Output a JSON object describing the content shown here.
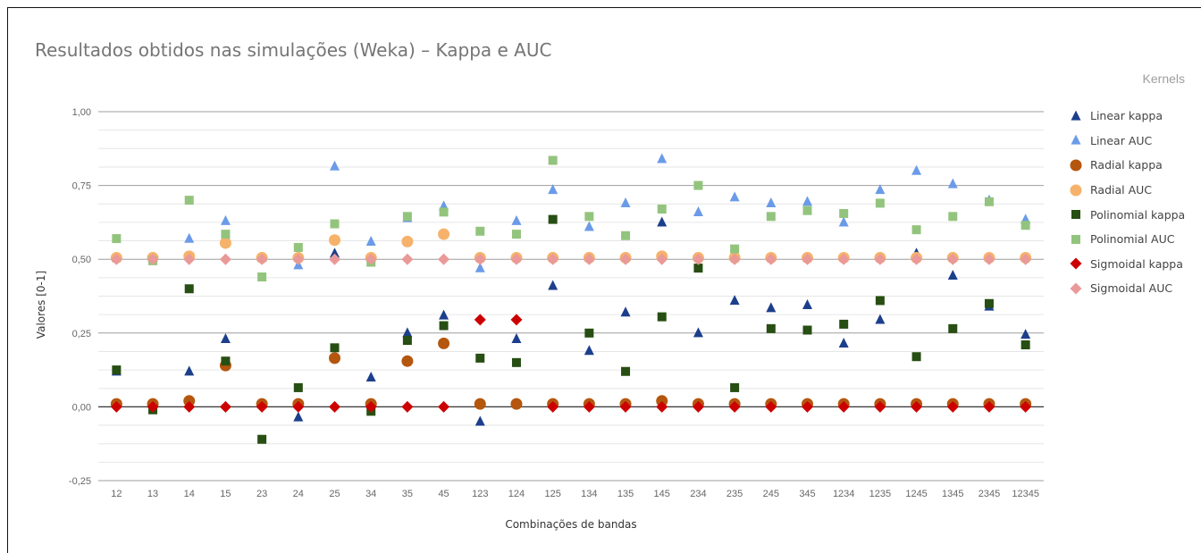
{
  "chart_data": {
    "type": "scatter",
    "title": "Resultados obtidos nas simulações (Weka) – Kappa e AUC",
    "xlabel": "Combinações de bandas",
    "ylabel": "Valores [0-1]",
    "legend_title": "Kernels",
    "legend_position": "right",
    "grid": true,
    "ylim": [
      -0.25,
      1.0
    ],
    "yticks": [
      "1,00",
      "0,75",
      "0,50",
      "0,25",
      "0,00",
      "-0,25"
    ],
    "categories": [
      "12",
      "13",
      "14",
      "15",
      "23",
      "24",
      "25",
      "34",
      "35",
      "45",
      "123",
      "124",
      "125",
      "134",
      "135",
      "145",
      "234",
      "235",
      "245",
      "345",
      "1234",
      "1235",
      "1245",
      "1345",
      "2345",
      "12345"
    ],
    "series": [
      {
        "name": "Linear kappa",
        "color": "#1c3f8c",
        "marker": "triangle",
        "values": [
          0.12,
          0.01,
          0.12,
          0.23,
          0.01,
          -0.035,
          0.52,
          0.1,
          0.25,
          0.31,
          -0.05,
          0.23,
          0.41,
          0.19,
          0.32,
          0.625,
          0.25,
          0.36,
          0.335,
          0.345,
          0.215,
          0.295,
          0.52,
          0.445,
          0.34,
          0.245
        ]
      },
      {
        "name": "Linear AUC",
        "color": "#6b9be8",
        "marker": "triangle",
        "values": [
          0.505,
          0.505,
          0.57,
          0.63,
          0.505,
          0.48,
          0.815,
          0.56,
          0.64,
          0.68,
          0.47,
          0.63,
          0.735,
          0.61,
          0.69,
          0.84,
          0.66,
          0.71,
          0.69,
          0.695,
          0.625,
          0.735,
          0.8,
          0.755,
          0.7,
          0.635
        ]
      },
      {
        "name": "Radial kappa",
        "color": "#b5560e",
        "marker": "circle",
        "values": [
          0.01,
          0.01,
          0.02,
          0.14,
          0.01,
          0.01,
          0.165,
          0.01,
          0.155,
          0.215,
          0.01,
          0.01,
          0.01,
          0.01,
          0.01,
          0.02,
          0.01,
          0.01,
          0.01,
          0.01,
          0.01,
          0.01,
          0.01,
          0.01,
          0.01,
          0.01
        ]
      },
      {
        "name": "Radial AUC",
        "color": "#f6b26b",
        "marker": "circle",
        "values": [
          0.505,
          0.505,
          0.51,
          0.555,
          0.505,
          0.505,
          0.565,
          0.505,
          0.56,
          0.585,
          0.505,
          0.505,
          0.505,
          0.505,
          0.505,
          0.51,
          0.505,
          0.505,
          0.505,
          0.505,
          0.505,
          0.505,
          0.505,
          0.505,
          0.505,
          0.505
        ]
      },
      {
        "name": "Polinomial kappa",
        "color": "#274e13",
        "marker": "square",
        "values": [
          0.125,
          -0.01,
          0.4,
          0.155,
          -0.11,
          0.065,
          0.2,
          -0.015,
          0.225,
          0.275,
          0.165,
          0.15,
          0.635,
          0.25,
          0.12,
          0.305,
          0.47,
          0.065,
          0.265,
          0.26,
          0.28,
          0.36,
          0.17,
          0.265,
          0.35,
          0.21
        ]
      },
      {
        "name": "Polinomial AUC",
        "color": "#93c47d",
        "marker": "square",
        "values": [
          0.57,
          0.495,
          0.7,
          0.585,
          0.44,
          0.54,
          0.62,
          0.49,
          0.645,
          0.66,
          0.595,
          0.585,
          0.835,
          0.645,
          0.58,
          0.67,
          0.75,
          0.535,
          0.645,
          0.665,
          0.655,
          0.69,
          0.6,
          0.645,
          0.695,
          0.615
        ]
      },
      {
        "name": "Sigmoidal kappa",
        "color": "#cc0000",
        "marker": "diamond",
        "values": [
          0.0,
          0.0,
          0.0,
          0.0,
          0.0,
          0.0,
          0.0,
          0.0,
          0.0,
          0.0,
          0.295,
          0.295,
          0.0,
          0.0,
          0.0,
          0.0,
          0.0,
          0.0,
          0.0,
          0.0,
          0.0,
          0.0,
          0.0,
          0.0,
          0.0,
          0.0
        ]
      },
      {
        "name": "Sigmoidal AUC",
        "color": "#ea9999",
        "marker": "diamond",
        "values": [
          0.5,
          0.5,
          0.5,
          0.5,
          0.5,
          0.5,
          0.5,
          0.5,
          0.5,
          0.5,
          0.5,
          0.5,
          0.5,
          0.5,
          0.5,
          0.5,
          0.5,
          0.5,
          0.5,
          0.5,
          0.5,
          0.5,
          0.5,
          0.5,
          0.5,
          0.5
        ]
      }
    ]
  }
}
